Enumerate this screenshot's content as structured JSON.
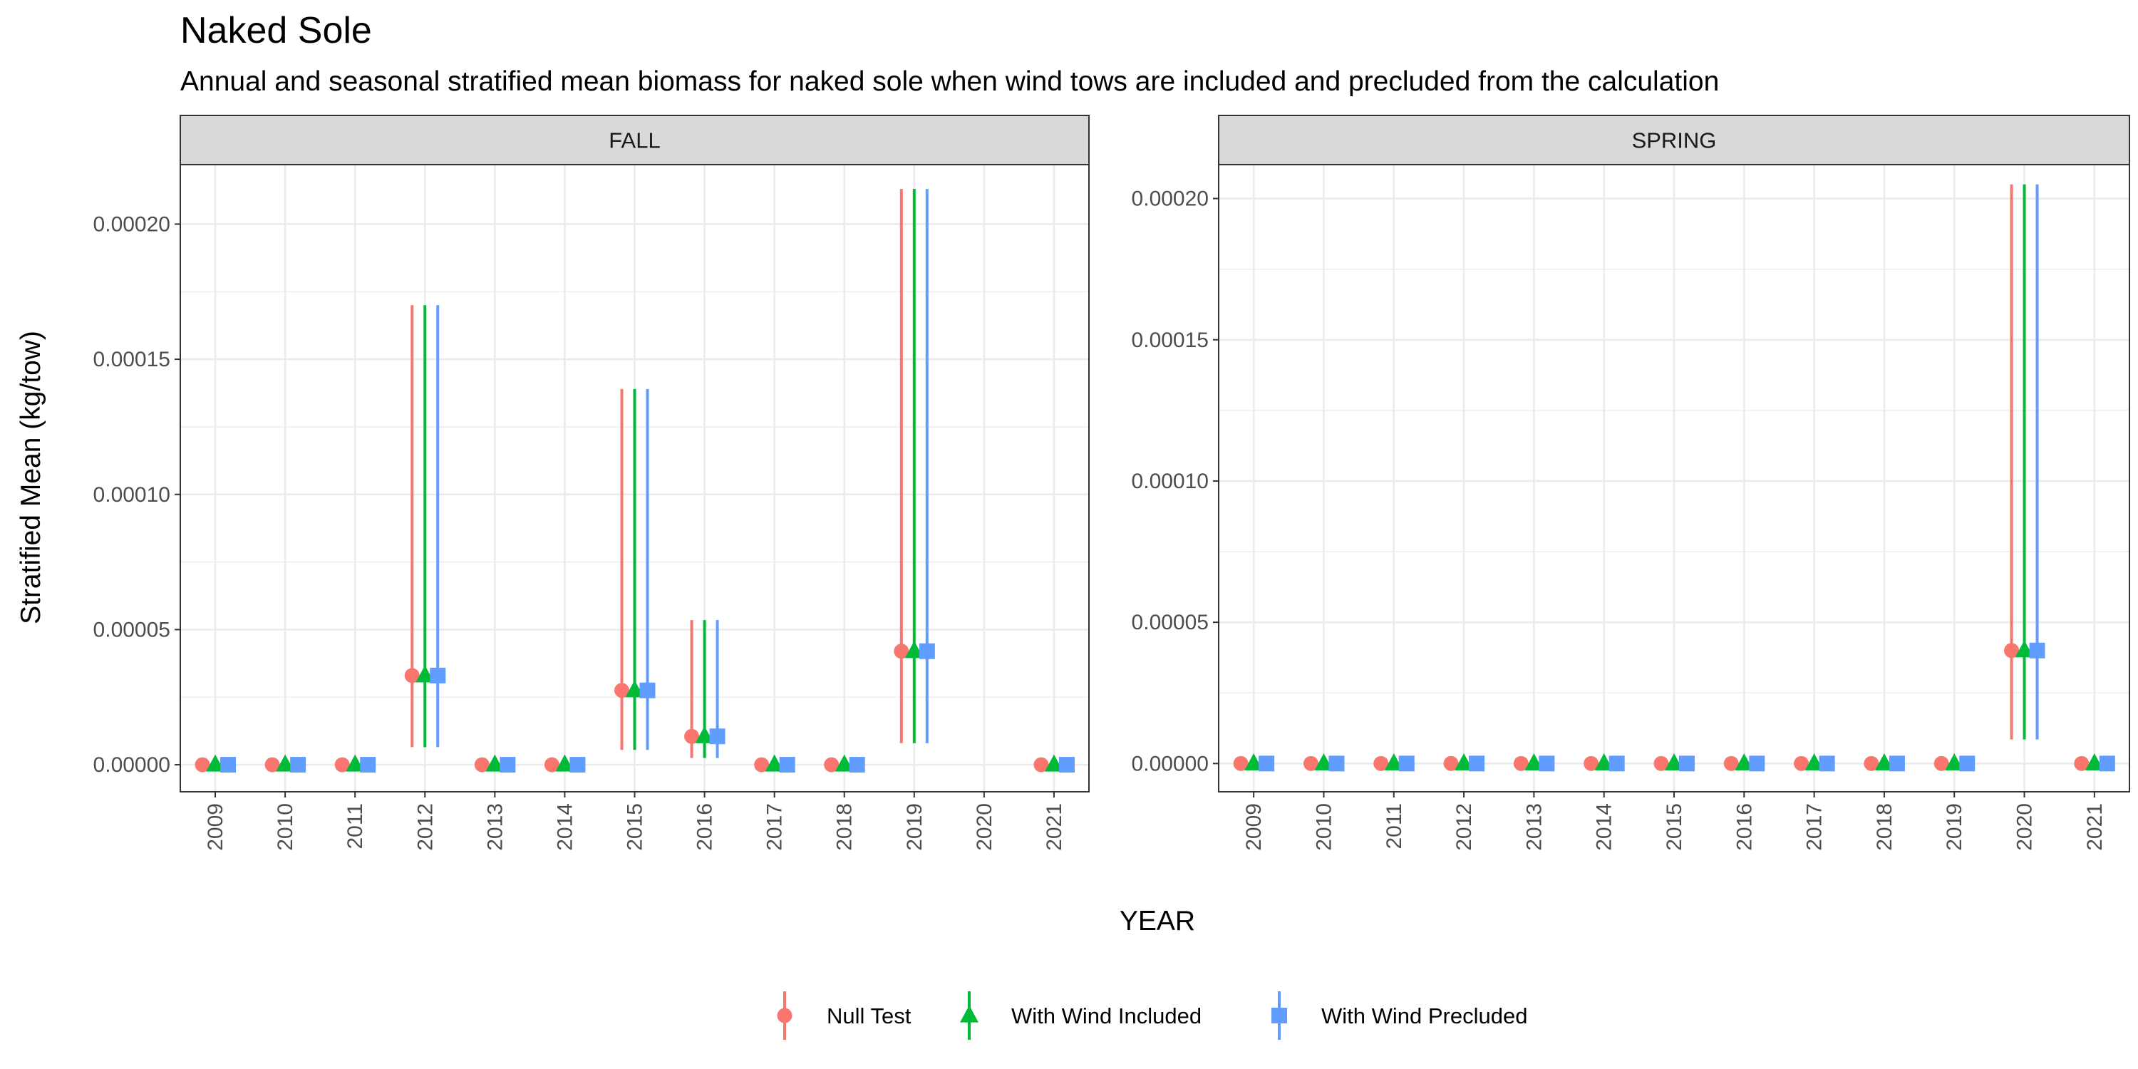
{
  "title": "Naked Sole",
  "subtitle": "Annual and seasonal stratified mean biomass for naked sole when wind tows are included and precluded from the calculation",
  "xlabel": "YEAR",
  "ylabel": "Stratified Mean (kg/tow)",
  "colors": {
    "Null Test": "#F8766D",
    "With Wind Included": "#00BA38",
    "With Wind Precluded": "#619CFF",
    "strip_bg": "#D9D9D9",
    "grid": "#EBEBEB",
    "panel_border": "#333333"
  },
  "legend": {
    "position": "bottom",
    "items": [
      {
        "label": "Null Test",
        "shape": "circle"
      },
      {
        "label": "With Wind Included",
        "shape": "triangle"
      },
      {
        "label": "With Wind Precluded",
        "shape": "square"
      }
    ]
  },
  "chart_data": [
    {
      "type": "scatter",
      "panel": "FALL",
      "categories": [
        "2009",
        "2010",
        "2011",
        "2012",
        "2013",
        "2014",
        "2015",
        "2016",
        "2017",
        "2018",
        "2019",
        "2020",
        "2021"
      ],
      "yticks": [
        "0.00000",
        "0.00005",
        "0.00010",
        "0.00015",
        "0.00020"
      ],
      "ylim": [
        -1e-05,
        0.000222
      ],
      "grid": true,
      "series": [
        {
          "name": "Null Test",
          "values": [
            0,
            0,
            0,
            3.3e-05,
            0,
            0,
            2.75e-05,
            1.05e-05,
            0,
            0,
            4.2e-05,
            null,
            0
          ],
          "lower": [
            0,
            0,
            0,
            6.5e-06,
            0,
            0,
            5.5e-06,
            2.5e-06,
            0,
            0,
            8e-06,
            null,
            0
          ],
          "upper": [
            0,
            0,
            0,
            0.00017,
            0,
            0,
            0.000139,
            5.35e-05,
            0,
            0,
            0.000213,
            null,
            0
          ]
        },
        {
          "name": "With Wind Included",
          "values": [
            0,
            0,
            0,
            3.3e-05,
            0,
            0,
            2.75e-05,
            1.05e-05,
            0,
            0,
            4.2e-05,
            null,
            0
          ],
          "lower": [
            0,
            0,
            0,
            6.5e-06,
            0,
            0,
            5.5e-06,
            2.5e-06,
            0,
            0,
            8e-06,
            null,
            0
          ],
          "upper": [
            0,
            0,
            0,
            0.00017,
            0,
            0,
            0.000139,
            5.35e-05,
            0,
            0,
            0.000213,
            null,
            0
          ]
        },
        {
          "name": "With Wind Precluded",
          "values": [
            0,
            0,
            0,
            3.3e-05,
            0,
            0,
            2.75e-05,
            1.05e-05,
            0,
            0,
            4.2e-05,
            null,
            0
          ],
          "lower": [
            0,
            0,
            0,
            6.5e-06,
            0,
            0,
            5.5e-06,
            2.5e-06,
            0,
            0,
            8e-06,
            null,
            0
          ],
          "upper": [
            0,
            0,
            0,
            0.00017,
            0,
            0,
            0.000139,
            5.35e-05,
            0,
            0,
            0.000213,
            null,
            0
          ]
        }
      ]
    },
    {
      "type": "scatter",
      "panel": "SPRING",
      "categories": [
        "2009",
        "2010",
        "2011",
        "2012",
        "2013",
        "2014",
        "2015",
        "2016",
        "2017",
        "2018",
        "2019",
        "2020",
        "2021"
      ],
      "yticks": [
        "0.00000",
        "0.00005",
        "0.00010",
        "0.00015",
        "0.00020"
      ],
      "ylim": [
        -1e-05,
        0.000212
      ],
      "grid": true,
      "series": [
        {
          "name": "Null Test",
          "values": [
            0,
            0,
            0,
            0,
            0,
            0,
            0,
            0,
            0,
            0,
            0,
            4e-05,
            0
          ],
          "lower": [
            0,
            0,
            0,
            0,
            0,
            0,
            0,
            0,
            0,
            0,
            0,
            8.5e-06,
            0
          ],
          "upper": [
            0,
            0,
            0,
            0,
            0,
            0,
            0,
            0,
            0,
            0,
            0,
            0.000205,
            0
          ]
        },
        {
          "name": "With Wind Included",
          "values": [
            0,
            0,
            0,
            0,
            0,
            0,
            0,
            0,
            0,
            0,
            0,
            4e-05,
            0
          ],
          "lower": [
            0,
            0,
            0,
            0,
            0,
            0,
            0,
            0,
            0,
            0,
            0,
            8.5e-06,
            0
          ],
          "upper": [
            0,
            0,
            0,
            0,
            0,
            0,
            0,
            0,
            0,
            0,
            0,
            0.000205,
            0
          ]
        },
        {
          "name": "With Wind Precluded",
          "values": [
            0,
            0,
            0,
            0,
            0,
            0,
            0,
            0,
            0,
            0,
            0,
            4e-05,
            0
          ],
          "lower": [
            0,
            0,
            0,
            0,
            0,
            0,
            0,
            0,
            0,
            0,
            0,
            8.5e-06,
            0
          ],
          "upper": [
            0,
            0,
            0,
            0,
            0,
            0,
            0,
            0,
            0,
            0,
            0,
            0.000205,
            0
          ]
        }
      ]
    }
  ]
}
